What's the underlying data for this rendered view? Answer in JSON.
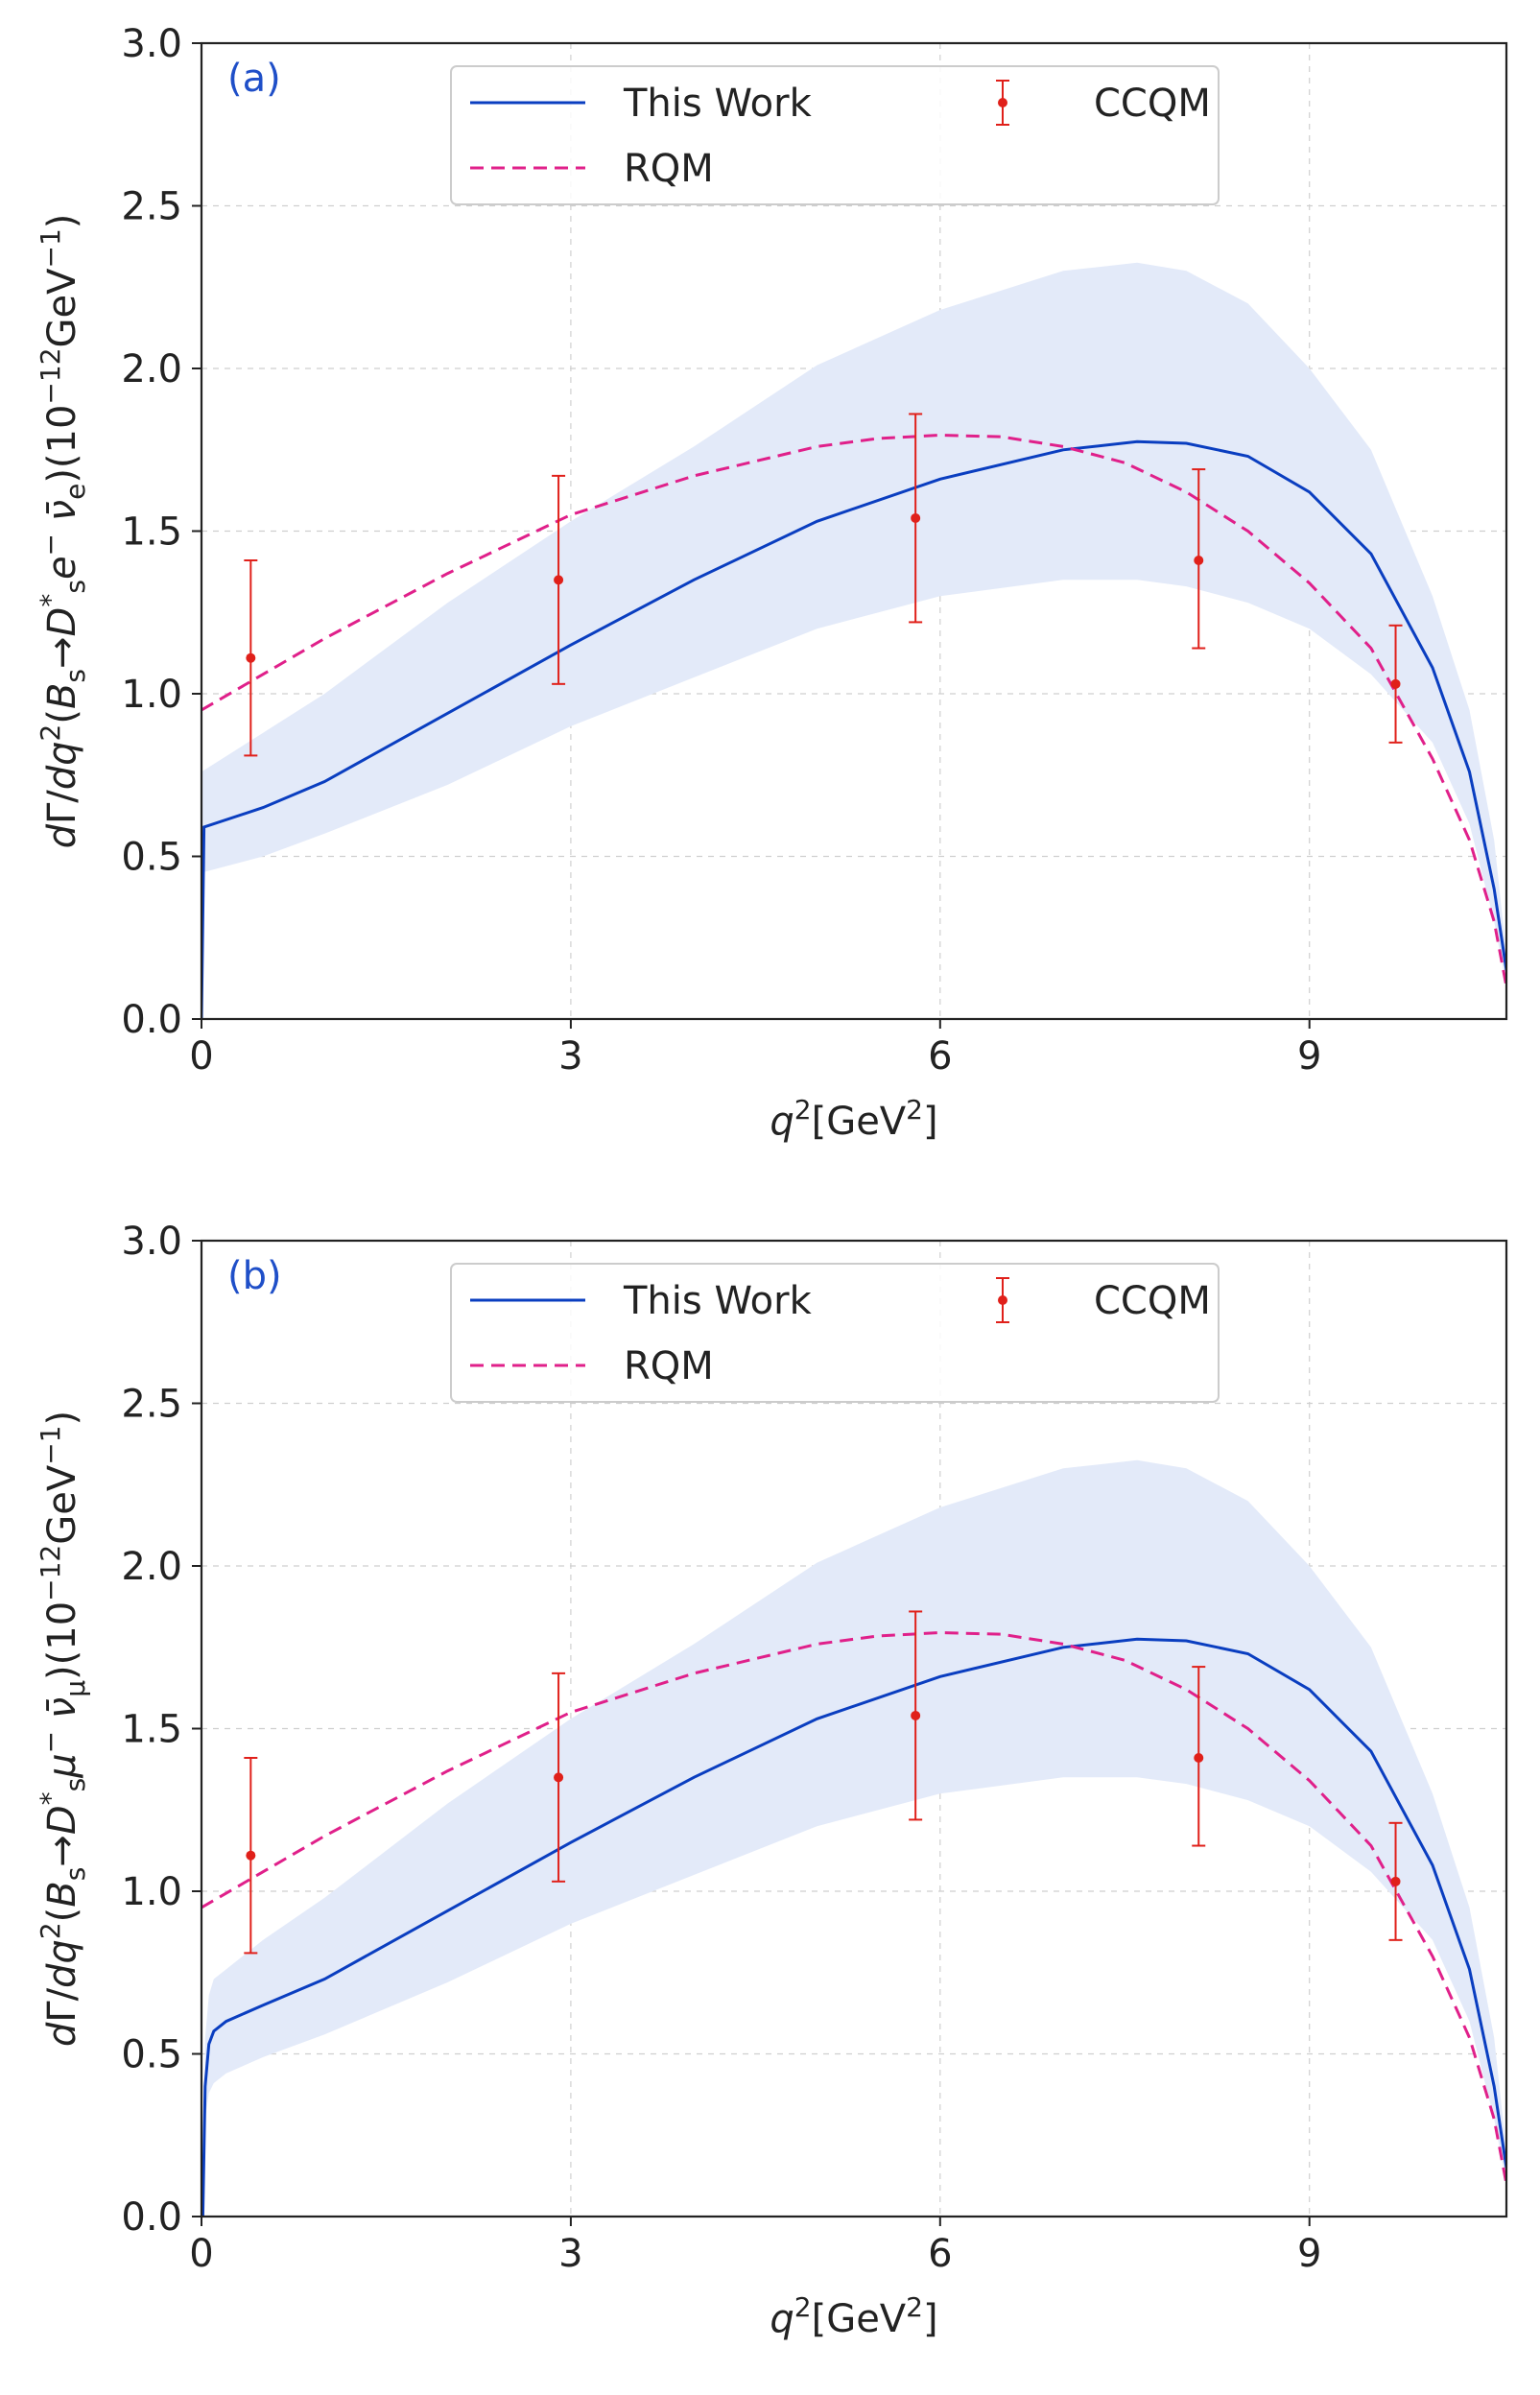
{
  "colors": {
    "this_work": "#0a3ec0",
    "rqm": "#e0208a",
    "ccqm": "#e0201a",
    "band": "#e3eaf9",
    "panel_label": "#1f4fc8",
    "grid": "#cfcfcf"
  },
  "chart_data": [
    {
      "type": "line",
      "panel_label": "(a)",
      "xlabel_parts": {
        "var": "q",
        "sup": "2",
        "unit_open": "[GeV",
        "unit_sup": "2",
        "unit_close": "]"
      },
      "ylabel_parts": {
        "prefix": "dΓ/dq",
        "sup1": "2",
        "process": "(B",
        "sub1": "s",
        "arrow": " → D",
        "sup2": "*",
        "sub2": "s",
        "rest": " e",
        "sup3": "−",
        "nubar": " ν̄",
        "sub3": "e",
        "close": ")",
        "unit": "(10",
        "sup4": "−12",
        "unit2": "GeV",
        "sup5": "−1",
        "unit3": ")"
      },
      "xlim": [
        0,
        10.6
      ],
      "ylim": [
        0,
        3.0
      ],
      "xticks": [
        0,
        3,
        6,
        9
      ],
      "yticks": [
        0.0,
        0.5,
        1.0,
        1.5,
        2.0,
        2.5,
        3.0
      ],
      "xtick_labels": [
        "0",
        "3",
        "6",
        "9"
      ],
      "ytick_labels": [
        "0.0",
        "0.5",
        "1.0",
        "1.5",
        "2.0",
        "2.5",
        "3.0"
      ],
      "grid": true,
      "legend_position": "top-center",
      "legend": {
        "this_work": "This Work",
        "rqm": "RQM",
        "ccqm": "CCQM"
      },
      "series": [
        {
          "name": "This Work",
          "style": "solid",
          "x": [
            0.0,
            0.02,
            0.5,
            1.0,
            2.0,
            3.0,
            4.0,
            5.0,
            6.0,
            7.0,
            7.6,
            8.0,
            8.5,
            9.0,
            9.5,
            10.0,
            10.3,
            10.5,
            10.6
          ],
          "y": [
            0.0,
            0.59,
            0.65,
            0.73,
            0.94,
            1.15,
            1.35,
            1.53,
            1.66,
            1.75,
            1.775,
            1.77,
            1.73,
            1.62,
            1.43,
            1.08,
            0.76,
            0.4,
            0.15
          ]
        },
        {
          "name": "This Work band",
          "style": "band",
          "x": [
            0.0,
            0.5,
            1.0,
            2.0,
            3.0,
            4.0,
            5.0,
            6.0,
            7.0,
            7.6,
            8.0,
            8.5,
            9.0,
            9.5,
            10.0,
            10.3,
            10.5,
            10.6
          ],
          "upper": [
            0.76,
            0.88,
            1.0,
            1.28,
            1.53,
            1.76,
            2.01,
            2.18,
            2.3,
            2.325,
            2.3,
            2.2,
            2.0,
            1.75,
            1.3,
            0.95,
            0.55,
            0.2
          ],
          "lower": [
            0.45,
            0.5,
            0.57,
            0.72,
            0.9,
            1.05,
            1.2,
            1.3,
            1.35,
            1.35,
            1.33,
            1.28,
            1.2,
            1.06,
            0.85,
            0.6,
            0.3,
            0.1
          ]
        },
        {
          "name": "RQM",
          "style": "dashed",
          "x": [
            0.0,
            0.5,
            1.0,
            2.0,
            3.0,
            4.0,
            5.0,
            5.5,
            6.0,
            6.5,
            7.0,
            7.5,
            8.0,
            8.5,
            9.0,
            9.5,
            10.0,
            10.3,
            10.5,
            10.6
          ],
          "y": [
            0.95,
            1.06,
            1.17,
            1.37,
            1.55,
            1.67,
            1.76,
            1.785,
            1.795,
            1.79,
            1.76,
            1.71,
            1.62,
            1.5,
            1.34,
            1.14,
            0.8,
            0.55,
            0.3,
            0.1
          ]
        },
        {
          "name": "CCQM",
          "style": "errorbar",
          "x": [
            0.4,
            2.9,
            5.8,
            8.1,
            9.7
          ],
          "y": [
            1.11,
            1.35,
            1.54,
            1.41,
            1.03
          ],
          "err_low": [
            0.81,
            1.03,
            1.22,
            1.14,
            0.85
          ],
          "err_high": [
            1.41,
            1.67,
            1.86,
            1.69,
            1.21
          ]
        }
      ]
    },
    {
      "type": "line",
      "panel_label": "(b)",
      "xlabel_parts": {
        "var": "q",
        "sup": "2",
        "unit_open": "[GeV",
        "unit_sup": "2",
        "unit_close": "]"
      },
      "ylabel_parts": {
        "prefix": "dΓ/dq",
        "sup1": "2",
        "process": "(B",
        "sub1": "s",
        "arrow": " → D",
        "sup2": "*",
        "sub2": "s",
        "rest": " μ",
        "sup3": "−",
        "nubar": " ν̄",
        "sub3": "μ",
        "close": ")",
        "unit": "(10",
        "sup4": "−12",
        "unit2": "GeV",
        "sup5": "−1",
        "unit3": ")"
      },
      "xlim": [
        0,
        10.6
      ],
      "ylim": [
        0,
        3.0
      ],
      "xticks": [
        0,
        3,
        6,
        9
      ],
      "yticks": [
        0.0,
        0.5,
        1.0,
        1.5,
        2.0,
        2.5,
        3.0
      ],
      "xtick_labels": [
        "0",
        "3",
        "6",
        "9"
      ],
      "ytick_labels": [
        "0.0",
        "0.5",
        "1.0",
        "1.5",
        "2.0",
        "2.5",
        "3.0"
      ],
      "grid": true,
      "legend_position": "top-center",
      "legend": {
        "this_work": "This Work",
        "rqm": "RQM",
        "ccqm": "CCQM"
      },
      "series": [
        {
          "name": "This Work",
          "style": "solid",
          "x": [
            0.011,
            0.03,
            0.06,
            0.1,
            0.2,
            0.5,
            1.0,
            2.0,
            3.0,
            4.0,
            5.0,
            6.0,
            7.0,
            7.6,
            8.0,
            8.5,
            9.0,
            9.5,
            10.0,
            10.3,
            10.5,
            10.6
          ],
          "y": [
            0.0,
            0.4,
            0.53,
            0.57,
            0.6,
            0.65,
            0.73,
            0.94,
            1.15,
            1.35,
            1.53,
            1.66,
            1.75,
            1.775,
            1.77,
            1.73,
            1.62,
            1.43,
            1.08,
            0.76,
            0.4,
            0.15
          ]
        },
        {
          "name": "This Work band",
          "style": "band",
          "x": [
            0.011,
            0.03,
            0.06,
            0.1,
            0.2,
            0.5,
            1.0,
            2.0,
            3.0,
            4.0,
            5.0,
            6.0,
            7.0,
            7.6,
            8.0,
            8.5,
            9.0,
            9.5,
            10.0,
            10.3,
            10.5,
            10.6
          ],
          "upper": [
            0.0,
            0.55,
            0.68,
            0.73,
            0.76,
            0.85,
            0.98,
            1.27,
            1.53,
            1.76,
            2.01,
            2.18,
            2.3,
            2.325,
            2.3,
            2.2,
            2.0,
            1.75,
            1.3,
            0.95,
            0.55,
            0.2
          ],
          "lower": [
            0.0,
            0.3,
            0.38,
            0.41,
            0.44,
            0.49,
            0.56,
            0.72,
            0.9,
            1.05,
            1.2,
            1.3,
            1.35,
            1.35,
            1.33,
            1.28,
            1.2,
            1.06,
            0.85,
            0.6,
            0.3,
            0.1
          ]
        },
        {
          "name": "RQM",
          "style": "dashed",
          "x": [
            0.0,
            0.5,
            1.0,
            2.0,
            3.0,
            4.0,
            5.0,
            5.5,
            6.0,
            6.5,
            7.0,
            7.5,
            8.0,
            8.5,
            9.0,
            9.5,
            10.0,
            10.3,
            10.5,
            10.6
          ],
          "y": [
            0.95,
            1.06,
            1.17,
            1.37,
            1.55,
            1.67,
            1.76,
            1.785,
            1.795,
            1.79,
            1.76,
            1.71,
            1.62,
            1.5,
            1.34,
            1.14,
            0.8,
            0.55,
            0.3,
            0.1
          ]
        },
        {
          "name": "CCQM",
          "style": "errorbar",
          "x": [
            0.4,
            2.9,
            5.8,
            8.1,
            9.7
          ],
          "y": [
            1.11,
            1.35,
            1.54,
            1.41,
            1.03
          ],
          "err_low": [
            0.81,
            1.03,
            1.22,
            1.14,
            0.85
          ],
          "err_high": [
            1.41,
            1.67,
            1.86,
            1.69,
            1.21
          ]
        }
      ]
    }
  ]
}
